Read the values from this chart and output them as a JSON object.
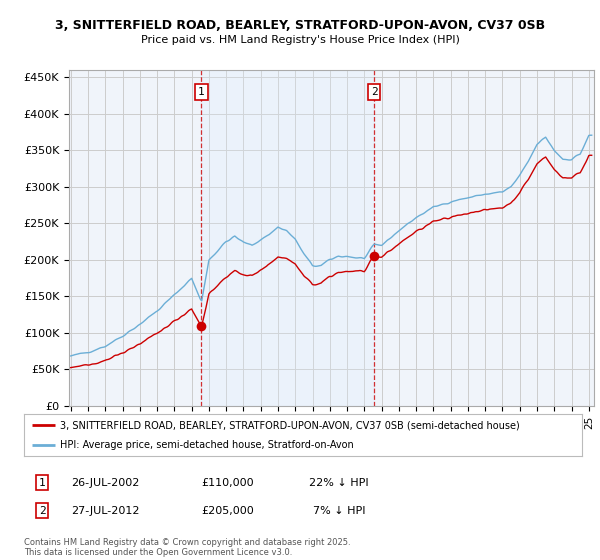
{
  "title1": "3, SNITTERFIELD ROAD, BEARLEY, STRATFORD-UPON-AVON, CV37 0SB",
  "title2": "Price paid vs. HM Land Registry's House Price Index (HPI)",
  "ylabel_ticks": [
    "£0",
    "£50K",
    "£100K",
    "£150K",
    "£200K",
    "£250K",
    "£300K",
    "£350K",
    "£400K",
    "£450K"
  ],
  "ytick_vals": [
    0,
    50000,
    100000,
    150000,
    200000,
    250000,
    300000,
    350000,
    400000,
    450000
  ],
  "ylim": [
    0,
    460000
  ],
  "xlim_start": 1994.9,
  "xlim_end": 2025.3,
  "xtick_years": [
    1995,
    1996,
    1997,
    1998,
    1999,
    2000,
    2001,
    2002,
    2003,
    2004,
    2005,
    2006,
    2007,
    2008,
    2009,
    2010,
    2011,
    2012,
    2013,
    2014,
    2015,
    2016,
    2017,
    2018,
    2019,
    2020,
    2021,
    2022,
    2023,
    2024,
    2025
  ],
  "sale1_x": 2002.57,
  "sale1_y": 110000,
  "sale1_label": "1",
  "sale2_x": 2012.57,
  "sale2_y": 205000,
  "sale2_label": "2",
  "hpi_color": "#6baed6",
  "hpi_fill_color": "#ddeeff",
  "sale_color": "#cc0000",
  "vline_color": "#cc0000",
  "shade_color": "#ddeeff",
  "grid_color": "#cccccc",
  "bg_color": "#ffffff",
  "plot_bg_color": "#f0f4fa",
  "legend_line1": "3, SNITTERFIELD ROAD, BEARLEY, STRATFORD-UPON-AVON, CV37 0SB (semi-detached house)",
  "legend_line2": "HPI: Average price, semi-detached house, Stratford-on-Avon",
  "annotation1_date": "26-JUL-2002",
  "annotation1_price": "£110,000",
  "annotation1_hpi": "22% ↓ HPI",
  "annotation2_date": "27-JUL-2012",
  "annotation2_price": "£205,000",
  "annotation2_hpi": "7% ↓ HPI",
  "footer": "Contains HM Land Registry data © Crown copyright and database right 2025.\nThis data is licensed under the Open Government Licence v3.0."
}
